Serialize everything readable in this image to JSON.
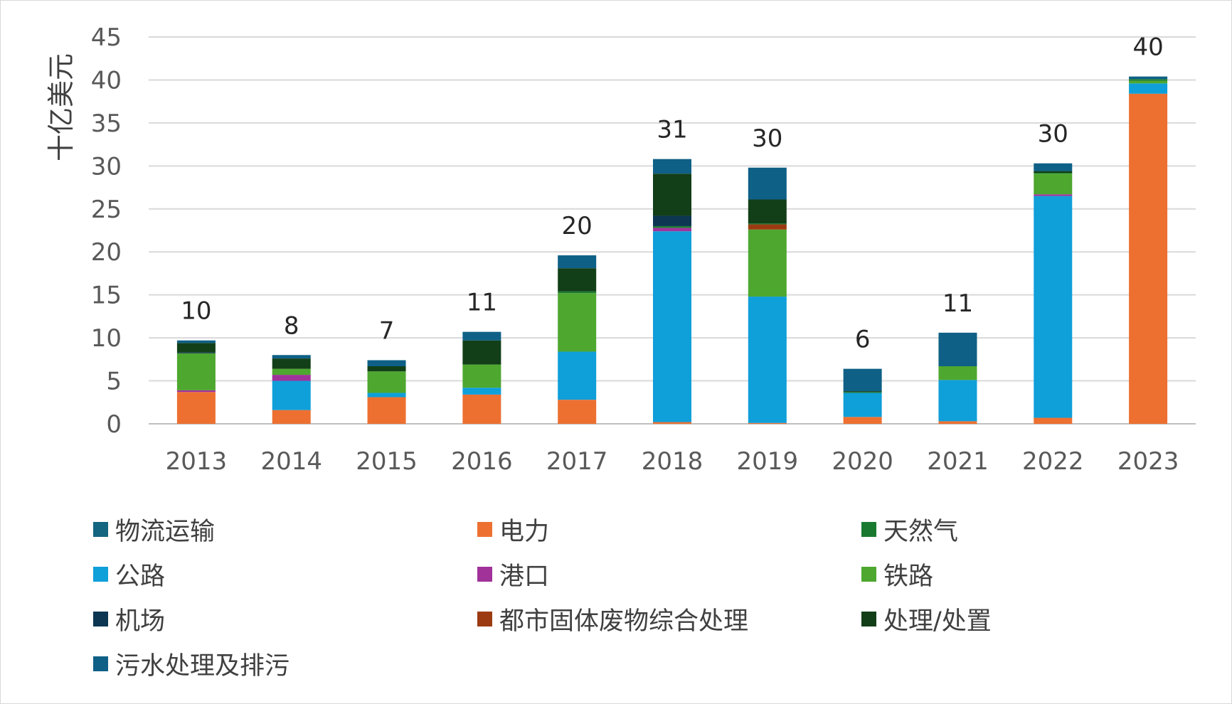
{
  "chart_data": {
    "type": "bar",
    "stacked": true,
    "ylabel": "十亿美元",
    "ylim": [
      0,
      45
    ],
    "yticks": [
      0,
      5,
      10,
      15,
      20,
      25,
      30,
      35,
      40,
      45
    ],
    "grid": true,
    "legend_position": "bottom",
    "categories": [
      "2013",
      "2014",
      "2015",
      "2016",
      "2017",
      "2018",
      "2019",
      "2020",
      "2021",
      "2022",
      "2023"
    ],
    "totals": [
      "10",
      "8",
      "7",
      "11",
      "20",
      "31",
      "30",
      "6",
      "11",
      "30",
      "40"
    ],
    "series": [
      {
        "name": "电力",
        "color": "#ed7031",
        "values": [
          3.7,
          1.6,
          3.1,
          3.4,
          2.8,
          0.2,
          0.1,
          0.8,
          0.3,
          0.7,
          38.4
        ]
      },
      {
        "name": "公路",
        "color": "#0f9fd9",
        "values": [
          0.0,
          3.4,
          0.5,
          0.8,
          5.6,
          22.2,
          14.7,
          2.8,
          4.8,
          25.8,
          1.2
        ]
      },
      {
        "name": "港口",
        "color": "#a0329a",
        "values": [
          0.2,
          0.7,
          0.0,
          0.0,
          0.0,
          0.4,
          0.0,
          0.0,
          0.0,
          0.2,
          0.0
        ]
      },
      {
        "name": "铁路",
        "color": "#4ea72f",
        "values": [
          4.3,
          0.7,
          2.5,
          2.7,
          6.8,
          0.0,
          7.8,
          0.0,
          1.6,
          2.4,
          0.3
        ]
      },
      {
        "name": "都市固体废物综合处理",
        "color": "#9c3b12",
        "values": [
          0.0,
          0.0,
          0.0,
          0.0,
          0.0,
          0.0,
          0.6,
          0.0,
          0.0,
          0.0,
          0.0
        ]
      },
      {
        "name": "天然气",
        "color": "#197a2f",
        "values": [
          0.0,
          0.0,
          0.0,
          0.0,
          0.2,
          0.2,
          0.1,
          0.1,
          0.0,
          0.1,
          0.2
        ]
      },
      {
        "name": "机场",
        "color": "#0c3651",
        "values": [
          0.1,
          0.0,
          0.0,
          0.0,
          0.0,
          1.2,
          0.0,
          0.0,
          0.0,
          0.0,
          0.0
        ]
      },
      {
        "name": "处理/处置",
        "color": "#123f18",
        "values": [
          1.1,
          1.2,
          0.6,
          2.8,
          2.7,
          4.9,
          2.8,
          0.1,
          0.0,
          0.2,
          0.0
        ]
      },
      {
        "name": "物流运输",
        "color": "#14657f",
        "values": [
          0.0,
          0.0,
          0.0,
          0.0,
          0.0,
          0.0,
          0.0,
          0.0,
          0.0,
          0.0,
          0.0
        ]
      },
      {
        "name": "污水处理及排污",
        "color": "#0e6086",
        "values": [
          0.3,
          0.4,
          0.7,
          1.0,
          1.5,
          1.7,
          3.7,
          2.6,
          3.9,
          0.9,
          0.3
        ]
      }
    ],
    "legend": [
      {
        "name": "物流运输",
        "color": "#14657f"
      },
      {
        "name": "电力",
        "color": "#ed7031"
      },
      {
        "name": "天然气",
        "color": "#197a2f"
      },
      {
        "name": "公路",
        "color": "#0f9fd9"
      },
      {
        "name": "港口",
        "color": "#a0329a"
      },
      {
        "name": "铁路",
        "color": "#4ea72f"
      },
      {
        "name": "机场",
        "color": "#0c3651"
      },
      {
        "name": "都市固体废物综合处理",
        "color": "#9c3b12"
      },
      {
        "name": "处理/处置",
        "color": "#123f18"
      },
      {
        "name": "污水处理及排污",
        "color": "#0e6086"
      }
    ]
  }
}
